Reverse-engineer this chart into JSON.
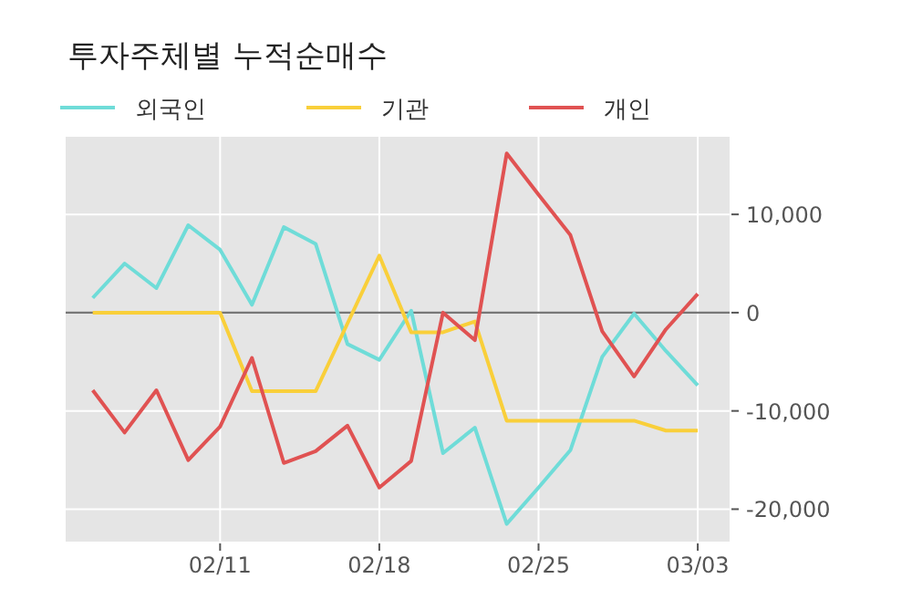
{
  "chart_data": {
    "type": "line",
    "title": "투자주체별 누적순매수",
    "categories": [
      null,
      null,
      null,
      null,
      "02/11",
      null,
      null,
      null,
      null,
      "02/18",
      null,
      null,
      null,
      null,
      "02/25",
      null,
      null,
      null,
      null,
      "03/03"
    ],
    "series": [
      {
        "name": "외국인",
        "color": "#6fdcd8",
        "values": [
          1500,
          5000,
          2500,
          8900,
          6400,
          800,
          8700,
          7000,
          -3200,
          -4800,
          200,
          -14300,
          -11700,
          -21500,
          -17800,
          -14000,
          -4500,
          -100,
          -3900,
          -7400
        ]
      },
      {
        "name": "기관",
        "color": "#f9cf3a",
        "values": [
          0,
          0,
          0,
          0,
          0,
          -8000,
          -8000,
          -8000,
          -1100,
          5800,
          -2000,
          -2000,
          -900,
          -11000,
          -11000,
          -11000,
          -11000,
          -11000,
          -12000,
          -12000
        ]
      },
      {
        "name": "개인",
        "color": "#e05252",
        "values": [
          -7900,
          -12200,
          -7900,
          -15000,
          -11600,
          -4600,
          -15300,
          -14100,
          -11500,
          -17800,
          -15100,
          0,
          -2800,
          16200,
          12000,
          7900,
          -1900,
          -6500,
          -1700,
          1900
        ]
      }
    ],
    "ylim": [
      -23300,
      17900
    ],
    "yticks": [
      {
        "value": -20000,
        "label": "-20,000"
      },
      {
        "value": -10000,
        "label": "-10,000"
      },
      0,
      {
        "value": 10000,
        "label": "10,000"
      }
    ],
    "ref_lines": [
      {
        "axis": "y",
        "value": 0,
        "color": "#777777"
      }
    ],
    "grid": true,
    "legend": "top left"
  }
}
